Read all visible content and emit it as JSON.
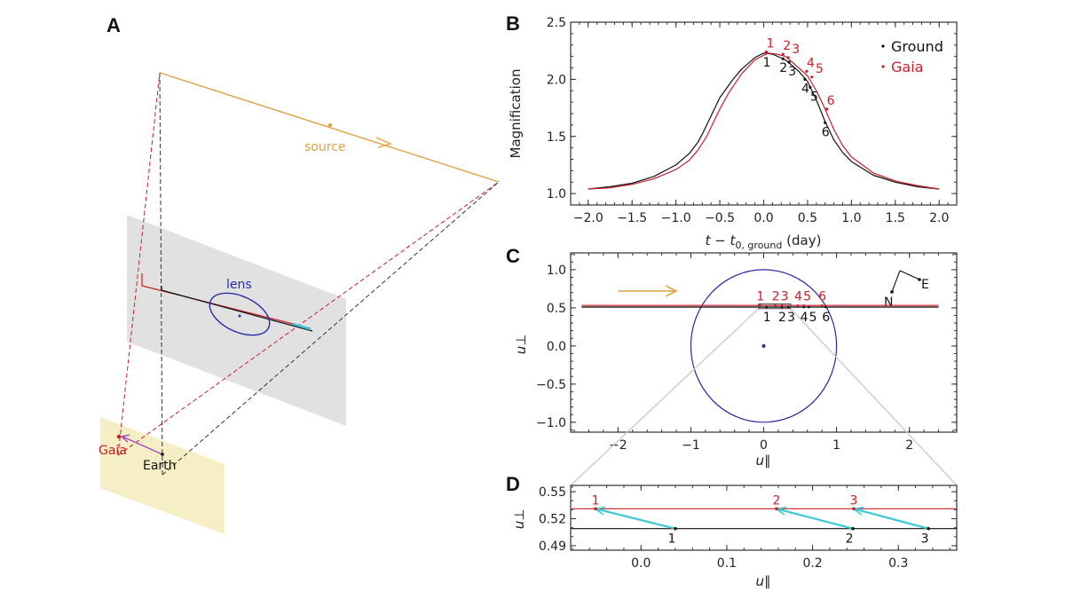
{
  "panel_labels": {
    "a": "A",
    "b": "B",
    "c": "C",
    "d": "D"
  },
  "diagram": {
    "source_label": "source",
    "lens_label": "lens",
    "gaia_label": "Gaia",
    "earth_label": "Earth"
  },
  "colors": {
    "ground": "#111111",
    "gaia": "#c8202a",
    "source": "#e0a040",
    "lens": "#2a2aa8",
    "parallax_arrow": "#3cc8d8",
    "lens_plane": "#dcdcdc",
    "observer_plane": "#f5efc4"
  },
  "chart_data": [
    {
      "panel": "B",
      "type": "line",
      "xlabel": {
        "var": "t − t",
        "sub": "0, ground",
        "unit": " (day)"
      },
      "ylabel": "Magnification",
      "xlim": [
        -2.2,
        2.2
      ],
      "ylim": [
        0.9,
        2.5
      ],
      "xticks": [
        -2,
        -1.5,
        -1,
        -0.5,
        0,
        0.5,
        1,
        1.5,
        2
      ],
      "xtick_labels": [
        "−2.0",
        "−1.5",
        "−1.0",
        "−0.5",
        "0.0",
        "0.5",
        "1.0",
        "1.5",
        "2.0"
      ],
      "yticks": [
        1.0,
        1.5,
        2.0,
        2.5
      ],
      "ytick_labels": [
        "1.0",
        "1.5",
        "2.0",
        "2.5"
      ],
      "x_minor_step": 0.1,
      "y_minor_step": 0.1,
      "legend": {
        "placement": "top-right",
        "entries": [
          "Ground",
          "Gaia"
        ]
      },
      "series": [
        {
          "name": "Ground",
          "x": [
            -2,
            -1.75,
            -1.5,
            -1.25,
            -1.0,
            -0.85,
            -0.75,
            -0.7,
            -0.6,
            -0.5,
            -0.35,
            -0.25,
            -0.1,
            0,
            0.1,
            0.25,
            0.4,
            0.5,
            0.6,
            0.7,
            0.8,
            0.9,
            1.0,
            1.25,
            1.5,
            1.75,
            2
          ],
          "y": [
            1.04,
            1.06,
            1.09,
            1.15,
            1.25,
            1.35,
            1.45,
            1.52,
            1.68,
            1.84,
            2.0,
            2.09,
            2.19,
            2.23,
            2.22,
            2.17,
            2.07,
            1.98,
            1.82,
            1.63,
            1.47,
            1.36,
            1.28,
            1.16,
            1.1,
            1.06,
            1.04
          ],
          "points": [
            {
              "label": "1",
              "x": 0.03,
              "y": 2.23
            },
            {
              "label": "2",
              "x": 0.22,
              "y": 2.18
            },
            {
              "label": "3",
              "x": 0.29,
              "y": 2.15
            },
            {
              "label": "4",
              "x": 0.47,
              "y": 2.0
            },
            {
              "label": "5",
              "x": 0.53,
              "y": 1.93
            },
            {
              "label": "6",
              "x": 0.7,
              "y": 1.62
            }
          ]
        },
        {
          "name": "Gaia",
          "x": [
            -2,
            -1.75,
            -1.5,
            -1.25,
            -1.0,
            -0.85,
            -0.75,
            -0.65,
            -0.5,
            -0.4,
            -0.25,
            -0.1,
            0,
            0.05,
            0.15,
            0.25,
            0.4,
            0.5,
            0.6,
            0.7,
            0.8,
            0.9,
            1.0,
            1.25,
            1.5,
            1.75,
            2
          ],
          "y": [
            1.04,
            1.05,
            1.08,
            1.13,
            1.21,
            1.29,
            1.38,
            1.5,
            1.74,
            1.88,
            2.05,
            2.17,
            2.21,
            2.23,
            2.22,
            2.2,
            2.1,
            2.03,
            1.9,
            1.74,
            1.56,
            1.42,
            1.32,
            1.18,
            1.11,
            1.07,
            1.04
          ],
          "points": [
            {
              "label": "1",
              "x": 0.03,
              "y": 2.24
            },
            {
              "label": "2",
              "x": 0.22,
              "y": 2.22
            },
            {
              "label": "3",
              "x": 0.28,
              "y": 2.19
            },
            {
              "label": "4",
              "x": 0.49,
              "y": 2.07
            },
            {
              "label": "5",
              "x": 0.55,
              "y": 2.02
            },
            {
              "label": "6",
              "x": 0.72,
              "y": 1.74
            }
          ]
        }
      ]
    },
    {
      "panel": "C",
      "type": "line",
      "xlabel": "u∥",
      "ylabel": "u⊥",
      "xlim": [
        -2.65,
        2.65
      ],
      "ylim": [
        -1.13,
        1.22
      ],
      "xticks": [
        -2,
        -1,
        0,
        1,
        2
      ],
      "xtick_labels": [
        "−2",
        "−1",
        "0",
        "1",
        "2"
      ],
      "yticks": [
        -1,
        -0.5,
        0,
        0.5,
        1
      ],
      "ytick_labels": [
        "−1.0",
        "−0.5",
        "0.0",
        "0.5",
        "1.0"
      ],
      "x_minor_step": 0.2,
      "y_minor_step": 0.1,
      "einstein_ring_radius": 1,
      "lens_position": [
        0,
        0
      ],
      "zoom_box": {
        "x": [
          -0.07,
          0.37
        ],
        "y": [
          0.49,
          0.55
        ]
      },
      "source_direction_arrow": {
        "x": [
          -2.0,
          -1.2
        ],
        "y": 0.72
      },
      "compass": {
        "north_label": "N",
        "east_label": "E"
      },
      "series": [
        {
          "name": "Ground",
          "line": {
            "x": [
              -2.5,
              2.4
            ],
            "y": 0.51
          },
          "points": [
            {
              "label": "1",
              "x": 0.04
            },
            {
              "label": "2",
              "x": 0.25
            },
            {
              "label": "3",
              "x": 0.34
            },
            {
              "label": "4",
              "x": 0.55
            },
            {
              "label": "5",
              "x": 0.62
            },
            {
              "label": "6",
              "x": 0.85
            }
          ]
        },
        {
          "name": "Gaia",
          "line": {
            "x": [
              -2.5,
              2.4
            ],
            "y": 0.53
          },
          "points": [
            {
              "label": "1",
              "x": -0.05
            },
            {
              "label": "2",
              "x": 0.16
            },
            {
              "label": "3",
              "x": 0.25
            },
            {
              "label": "4",
              "x": 0.47
            },
            {
              "label": "5",
              "x": 0.55
            },
            {
              "label": "6",
              "x": 0.8
            }
          ]
        }
      ]
    },
    {
      "panel": "D",
      "type": "line",
      "xlabel": "u∥",
      "ylabel": "u⊥",
      "xlim": [
        -0.082,
        0.368
      ],
      "ylim": [
        0.485,
        0.557
      ],
      "xticks": [
        0.0,
        0.1,
        0.2,
        0.3
      ],
      "xtick_labels": [
        "0.0",
        "0.1",
        "0.2",
        "0.3"
      ],
      "yticks": [
        0.49,
        0.52,
        0.55
      ],
      "ytick_labels": [
        "0.49",
        "0.52",
        "0.55"
      ],
      "x_minor_step": 0.02,
      "y_minor_step": 0.01,
      "series": [
        {
          "name": "Ground",
          "y": 0.509,
          "points": [
            {
              "label": "1",
              "x": 0.04
            },
            {
              "label": "2",
              "x": 0.247
            },
            {
              "label": "3",
              "x": 0.335
            }
          ]
        },
        {
          "name": "Gaia",
          "y": 0.531,
          "points": [
            {
              "label": "1",
              "x": -0.053
            },
            {
              "label": "2",
              "x": 0.158
            },
            {
              "label": "3",
              "x": 0.248
            }
          ]
        }
      ]
    }
  ]
}
